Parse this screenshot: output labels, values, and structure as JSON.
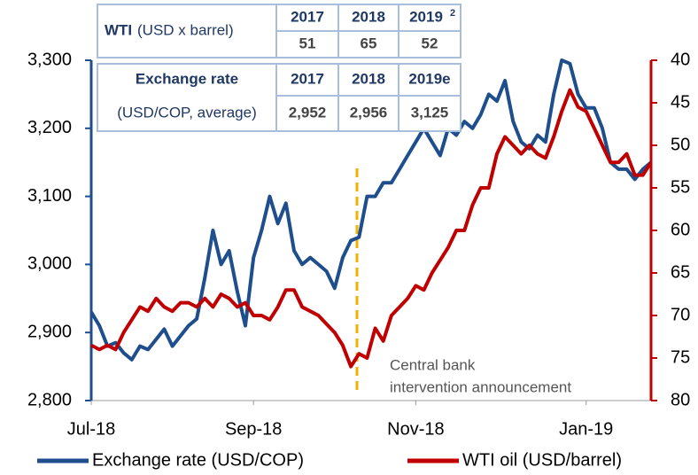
{
  "chart_data": {
    "type": "line",
    "categories": [
      "Jul-18",
      null,
      null,
      null,
      null,
      null,
      null,
      null,
      null,
      null,
      null,
      null,
      null,
      null,
      null,
      null,
      null,
      null,
      null,
      null,
      "Sep-18",
      null,
      null,
      null,
      null,
      null,
      null,
      null,
      null,
      null,
      null,
      null,
      null,
      null,
      null,
      null,
      null,
      null,
      null,
      null,
      "Nov-18",
      null,
      null,
      null,
      null,
      null,
      null,
      null,
      null,
      null,
      null,
      null,
      null,
      null,
      null,
      null,
      null,
      null,
      null,
      null,
      null,
      "Jan-19",
      null,
      null,
      null,
      null,
      null,
      null,
      null,
      null
    ],
    "series": [
      {
        "name": "Exchange rate (USD/COP)",
        "color": "#1f4e8c",
        "axis": "y",
        "values": [
          2930,
          2910,
          2880,
          2885,
          2870,
          2860,
          2880,
          2875,
          2890,
          2905,
          2880,
          2895,
          2910,
          2920,
          2980,
          3050,
          3000,
          3020,
          2960,
          2910,
          3010,
          3050,
          3100,
          3060,
          3090,
          3020,
          3000,
          3010,
          3000,
          2990,
          2965,
          3010,
          3035,
          3040,
          3100,
          3100,
          3120,
          3120,
          3140,
          3160,
          3180,
          3200,
          3180,
          3160,
          3200,
          3190,
          3210,
          3200,
          3220,
          3250,
          3240,
          3270,
          3210,
          3180,
          3170,
          3190,
          3180,
          3250,
          3300,
          3295,
          3250,
          3230,
          3230,
          3200,
          3150,
          3140,
          3140,
          3125,
          3140,
          3150
        ]
      },
      {
        "name": "WTI oil (USD/barrel)",
        "color": "#c00000",
        "axis": "y2",
        "values": [
          73.5,
          74,
          73.5,
          74,
          72,
          70.5,
          69,
          69.5,
          68,
          69,
          69.5,
          68.5,
          68.5,
          69,
          68,
          69,
          67.5,
          68,
          69,
          68.5,
          70,
          70,
          70.5,
          69,
          67,
          67,
          69,
          69.5,
          70,
          71,
          72,
          73.5,
          76,
          74.5,
          75,
          71.5,
          73,
          70,
          69,
          68,
          66.5,
          67,
          65,
          63.5,
          62,
          60,
          60,
          57,
          55,
          55,
          51,
          49,
          50,
          51,
          50,
          51,
          51.5,
          49,
          46,
          43.5,
          45.5,
          46,
          48,
          50,
          52,
          52,
          51,
          53.5,
          53.5,
          52
        ]
      }
    ],
    "ylim": [
      2800,
      3300
    ],
    "yticks": [
      {
        "value": 2800,
        "label": "2,800"
      },
      {
        "value": 2900,
        "label": "2,900"
      },
      {
        "value": 3000,
        "label": "3,000"
      },
      {
        "value": 3100,
        "label": "3,100"
      },
      {
        "value": 3200,
        "label": "3,200"
      },
      {
        "value": 3300,
        "label": "3,300"
      }
    ],
    "y2lim": [
      80,
      40
    ],
    "y2ticks": [
      80,
      75,
      70,
      65,
      60,
      55,
      50,
      45,
      40
    ],
    "annotation": [
      "Central bank",
      "intervention announcement"
    ],
    "inset_tables": [
      {
        "title": "WTI",
        "subtitle": "(USD x barrel)",
        "headers": [
          "2017",
          "2018",
          "2019"
        ],
        "footnote_mark": "2",
        "values": [
          "51",
          "65",
          "52"
        ]
      },
      {
        "title": "Exchange rate",
        "subtitle": "(USD/COP, average)",
        "headers": [
          "2017",
          "2018",
          "2019e"
        ],
        "values": [
          "2,952",
          "2,956",
          "3,125"
        ]
      }
    ]
  }
}
